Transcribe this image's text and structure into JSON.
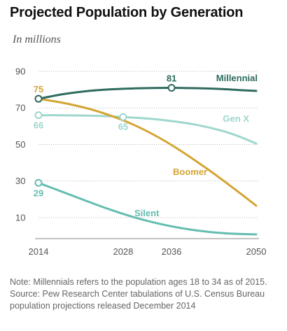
{
  "header": {
    "title": "Projected Population by Generation",
    "subtitle": "In millions"
  },
  "note": {
    "line1": "Note: Millennials refers to the population ages 18 to 34 as of 2015.",
    "line2": "Source: Pew Research Center tabulations of U.S. Census Bureau population projections released December 2014"
  },
  "chart_data": {
    "type": "line",
    "title": "Projected Population by Generation",
    "subtitle": "In millions",
    "xlabel": "",
    "ylabel": "",
    "x_ticks": [
      2014,
      2028,
      2036,
      2050
    ],
    "y_ticks": [
      10,
      30,
      50,
      70,
      90
    ],
    "xlim": [
      2014,
      2050
    ],
    "ylim": [
      0,
      90
    ],
    "grid": "horizontal dotted",
    "series": [
      {
        "name": "Millennial",
        "color": "#2f6b5e",
        "x": [
          2014,
          2018,
          2022,
          2026,
          2030,
          2033,
          2036,
          2040,
          2044,
          2047,
          2050
        ],
        "values": [
          75,
          77.5,
          79.2,
          80.2,
          80.7,
          80.9,
          81,
          80.8,
          80.4,
          79.8,
          79.3
        ],
        "labeled_points": [
          {
            "x": 2014,
            "value": "75"
          },
          {
            "x": 2036,
            "value": "81"
          }
        ]
      },
      {
        "name": "Gen X",
        "color": "#9fd6cf",
        "x": [
          2014,
          2018,
          2022,
          2026,
          2028,
          2032,
          2036,
          2040,
          2044,
          2047,
          2050
        ],
        "values": [
          66,
          66,
          65.8,
          65.4,
          65,
          64.2,
          62.8,
          60.8,
          57.8,
          54.6,
          50.5
        ],
        "labeled_points": [
          {
            "x": 2014,
            "value": "66"
          },
          {
            "x": 2028,
            "value": "65"
          }
        ]
      },
      {
        "name": "Boomer",
        "color": "#d4a533",
        "x": [
          2014,
          2018,
          2022,
          2026,
          2030,
          2034,
          2038,
          2042,
          2046,
          2050
        ],
        "values": [
          75,
          72.8,
          69.8,
          65.7,
          60.4,
          53.6,
          45.5,
          36.4,
          26.7,
          16.5
        ],
        "labeled_points": [
          {
            "x": 2014,
            "value": "75"
          }
        ]
      },
      {
        "name": "Silent",
        "color": "#63bdb0",
        "x": [
          2014,
          2018,
          2022,
          2026,
          2030,
          2034,
          2038,
          2042,
          2046,
          2050
        ],
        "values": [
          29,
          24,
          19,
          14.2,
          10,
          6.6,
          4,
          2.2,
          1.2,
          0.8
        ],
        "labeled_points": [
          {
            "x": 2014,
            "value": "29"
          }
        ]
      }
    ]
  }
}
